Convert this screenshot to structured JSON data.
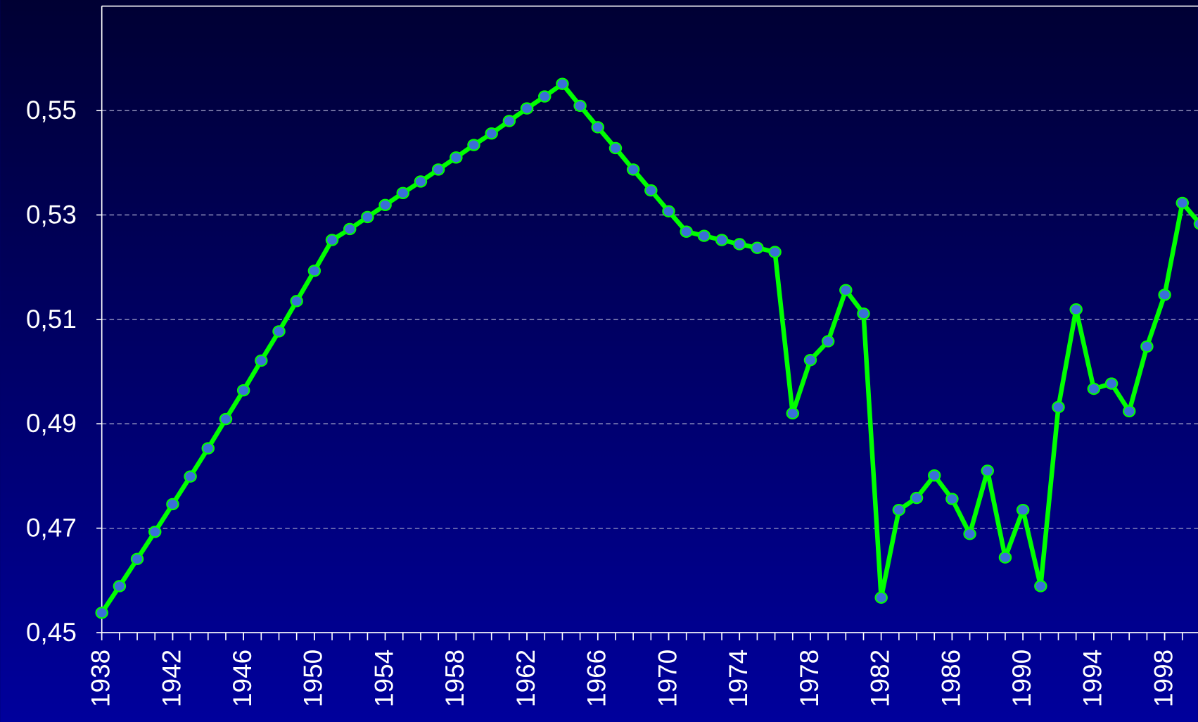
{
  "chart_data": {
    "type": "line",
    "x": [
      1938,
      1939,
      1940,
      1941,
      1942,
      1943,
      1944,
      1945,
      1946,
      1947,
      1948,
      1949,
      1950,
      1951,
      1952,
      1953,
      1954,
      1955,
      1956,
      1957,
      1958,
      1959,
      1960,
      1961,
      1962,
      1963,
      1964,
      1965,
      1966,
      1967,
      1968,
      1969,
      1970,
      1971,
      1972,
      1973,
      1974,
      1975,
      1976,
      1977,
      1978,
      1979,
      1980,
      1981,
      1982,
      1983,
      1984,
      1985,
      1986,
      1987,
      1988,
      1989,
      1990,
      1991,
      1992,
      1993,
      1994,
      1995,
      1996,
      1997,
      1998,
      1999,
      2000
    ],
    "series": [
      {
        "name": "series",
        "color": "#00ff00",
        "marker_color": "#3a6fd8",
        "values": [
          0.4538,
          0.4589,
          0.4641,
          0.4693,
          0.4746,
          0.4799,
          0.4853,
          0.4909,
          0.4964,
          0.5021,
          0.5077,
          0.5135,
          0.5193,
          0.5252,
          0.5273,
          0.5296,
          0.5319,
          0.5342,
          0.5364,
          0.5387,
          0.541,
          0.5434,
          0.5456,
          0.548,
          0.5504,
          0.5527,
          0.5551,
          0.5509,
          0.5468,
          0.5428,
          0.5387,
          0.5347,
          0.5307,
          0.5268,
          0.526,
          0.5252,
          0.5244,
          0.5237,
          0.5229,
          0.492,
          0.5022,
          0.5058,
          0.5156,
          0.5111,
          0.4567,
          0.4735,
          0.4758,
          0.4801,
          0.4756,
          0.4689,
          0.481,
          0.4644,
          0.4735,
          0.4589,
          0.4932,
          0.5119,
          0.4967,
          0.4977,
          0.4924,
          0.5048,
          0.5147,
          0.5323,
          0.5283
        ]
      }
    ],
    "xlim": [
      1938,
      2000
    ],
    "xticks": [
      1938,
      1942,
      1946,
      1950,
      1954,
      1958,
      1962,
      1966,
      1970,
      1974,
      1978,
      1982,
      1986,
      1990,
      1994,
      1998
    ],
    "ylim": [
      0.45,
      0.57
    ],
    "yticks": [
      {
        "value": 0.45,
        "label": "0,45"
      },
      {
        "value": 0.47,
        "label": "0,47"
      },
      {
        "value": 0.49,
        "label": "0,49"
      },
      {
        "value": 0.51,
        "label": "0,51"
      },
      {
        "value": 0.53,
        "label": "0,53"
      },
      {
        "value": 0.55,
        "label": "0,55"
      }
    ],
    "grid": true
  }
}
